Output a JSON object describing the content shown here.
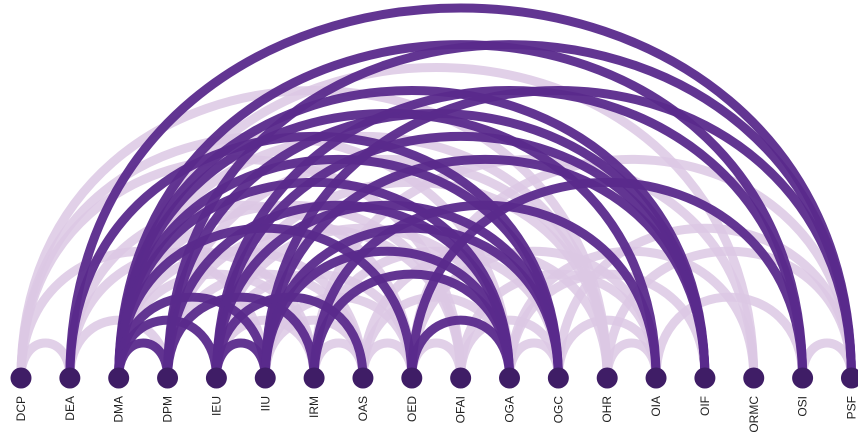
{
  "diagram": {
    "type": "arc-diagram",
    "colors": {
      "node": "#3f1d66",
      "strong_link": "#5a2a8c",
      "weak_link": "#dcc8e4"
    },
    "nodes": [
      {
        "id": "DCP",
        "label": "DCP"
      },
      {
        "id": "DEA",
        "label": "DEA"
      },
      {
        "id": "DMA",
        "label": "DMA"
      },
      {
        "id": "DPM",
        "label": "DPM"
      },
      {
        "id": "IEU",
        "label": "IEU"
      },
      {
        "id": "IIU",
        "label": "IIU"
      },
      {
        "id": "IRM",
        "label": "IRM"
      },
      {
        "id": "OAS",
        "label": "OAS"
      },
      {
        "id": "OED",
        "label": "OED"
      },
      {
        "id": "OFAI",
        "label": "OFAI"
      },
      {
        "id": "OGA",
        "label": "OGA"
      },
      {
        "id": "OGC",
        "label": "OGC"
      },
      {
        "id": "OHR",
        "label": "OHR"
      },
      {
        "id": "OIA",
        "label": "OIA"
      },
      {
        "id": "OIF",
        "label": "OIF"
      },
      {
        "id": "ORMC",
        "label": "ORMC"
      },
      {
        "id": "OSI",
        "label": "OSI"
      },
      {
        "id": "PSF",
        "label": "PSF"
      }
    ],
    "links": [
      {
        "source": "DCP",
        "target": "OHR",
        "strength": "weak"
      },
      {
        "source": "DCP",
        "target": "OGA",
        "strength": "weak"
      },
      {
        "source": "DCP",
        "target": "IIU",
        "strength": "weak"
      },
      {
        "source": "DCP",
        "target": "DEA",
        "strength": "weak"
      },
      {
        "source": "DCP",
        "target": "OFAI",
        "strength": "weak"
      },
      {
        "source": "DEA",
        "target": "PSF",
        "strength": "strong"
      },
      {
        "source": "DEA",
        "target": "OGC",
        "strength": "strong"
      },
      {
        "source": "DEA",
        "target": "IRM",
        "strength": "weak"
      },
      {
        "source": "DEA",
        "target": "DPM",
        "strength": "weak"
      },
      {
        "source": "DEA",
        "target": "OED",
        "strength": "weak"
      },
      {
        "source": "DMA",
        "target": "OSI",
        "strength": "strong"
      },
      {
        "source": "DMA",
        "target": "OIF",
        "strength": "strong"
      },
      {
        "source": "DMA",
        "target": "OIA",
        "strength": "strong"
      },
      {
        "source": "DMA",
        "target": "OGC",
        "strength": "strong"
      },
      {
        "source": "DMA",
        "target": "OGA",
        "strength": "strong"
      },
      {
        "source": "DMA",
        "target": "OED",
        "strength": "strong"
      },
      {
        "source": "DMA",
        "target": "IIU",
        "strength": "strong"
      },
      {
        "source": "DMA",
        "target": "IEU",
        "strength": "strong"
      },
      {
        "source": "DMA",
        "target": "DPM",
        "strength": "strong"
      },
      {
        "source": "DMA",
        "target": "OAS",
        "strength": "weak"
      },
      {
        "source": "DMA",
        "target": "ORMC",
        "strength": "weak"
      },
      {
        "source": "DMA",
        "target": "OFAI",
        "strength": "weak"
      },
      {
        "source": "DMA",
        "target": "OHR",
        "strength": "weak"
      },
      {
        "source": "DMA",
        "target": "IRM",
        "strength": "weak"
      },
      {
        "source": "DPM",
        "target": "PSF",
        "strength": "strong"
      },
      {
        "source": "DPM",
        "target": "OIF",
        "strength": "strong"
      },
      {
        "source": "DPM",
        "target": "OGA",
        "strength": "strong"
      },
      {
        "source": "DPM",
        "target": "IRM",
        "strength": "strong"
      },
      {
        "source": "DPM",
        "target": "OFAI",
        "strength": "weak"
      },
      {
        "source": "DPM",
        "target": "OAS",
        "strength": "weak"
      },
      {
        "source": "DPM",
        "target": "OHR",
        "strength": "weak"
      },
      {
        "source": "IEU",
        "target": "OSI",
        "strength": "strong"
      },
      {
        "source": "IEU",
        "target": "OIF",
        "strength": "strong"
      },
      {
        "source": "IEU",
        "target": "OGC",
        "strength": "strong"
      },
      {
        "source": "IEU",
        "target": "OAS",
        "strength": "strong"
      },
      {
        "source": "IEU",
        "target": "IIU",
        "strength": "strong"
      },
      {
        "source": "IEU",
        "target": "OGA",
        "strength": "weak"
      },
      {
        "source": "IEU",
        "target": "OED",
        "strength": "weak"
      },
      {
        "source": "IEU",
        "target": "OHR",
        "strength": "weak"
      },
      {
        "source": "IEU",
        "target": "IRM",
        "strength": "weak"
      },
      {
        "source": "IIU",
        "target": "PSF",
        "strength": "strong"
      },
      {
        "source": "IIU",
        "target": "OIF",
        "strength": "strong"
      },
      {
        "source": "IIU",
        "target": "OGC",
        "strength": "strong"
      },
      {
        "source": "IIU",
        "target": "OGA",
        "strength": "strong"
      },
      {
        "source": "IIU",
        "target": "OED",
        "strength": "weak"
      },
      {
        "source": "IIU",
        "target": "OAS",
        "strength": "weak"
      },
      {
        "source": "IRM",
        "target": "OIA",
        "strength": "strong"
      },
      {
        "source": "IRM",
        "target": "OGA",
        "strength": "strong"
      },
      {
        "source": "IRM",
        "target": "OGC",
        "strength": "weak"
      },
      {
        "source": "IRM",
        "target": "ORMC",
        "strength": "weak"
      },
      {
        "source": "IRM",
        "target": "OAS",
        "strength": "weak"
      },
      {
        "source": "OAS",
        "target": "OGA",
        "strength": "weak"
      },
      {
        "source": "OAS",
        "target": "OED",
        "strength": "weak"
      },
      {
        "source": "OAS",
        "target": "OHR",
        "strength": "weak"
      },
      {
        "source": "OED",
        "target": "OSI",
        "strength": "strong"
      },
      {
        "source": "OED",
        "target": "OGA",
        "strength": "strong"
      },
      {
        "source": "OED",
        "target": "PSF",
        "strength": "weak"
      },
      {
        "source": "OED",
        "target": "OIA",
        "strength": "weak"
      },
      {
        "source": "OED",
        "target": "OFAI",
        "strength": "weak"
      },
      {
        "source": "OFAI",
        "target": "OGC",
        "strength": "weak"
      },
      {
        "source": "OFAI",
        "target": "OIA",
        "strength": "weak"
      },
      {
        "source": "OGA",
        "target": "OGC",
        "strength": "weak"
      },
      {
        "source": "OGA",
        "target": "OIF",
        "strength": "weak"
      },
      {
        "source": "OGA",
        "target": "ORMC",
        "strength": "weak"
      },
      {
        "source": "OGC",
        "target": "OIA",
        "strength": "weak"
      },
      {
        "source": "OGC",
        "target": "PSF",
        "strength": "weak"
      },
      {
        "source": "OHR",
        "target": "OIA",
        "strength": "weak"
      },
      {
        "source": "OHR",
        "target": "PSF",
        "strength": "weak"
      },
      {
        "source": "OIA",
        "target": "OSI",
        "strength": "weak"
      },
      {
        "source": "OSI",
        "target": "PSF",
        "strength": "weak"
      }
    ]
  }
}
